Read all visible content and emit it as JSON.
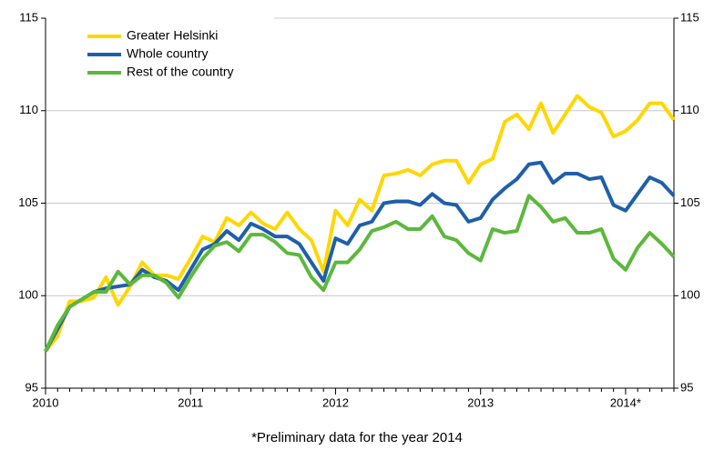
{
  "chart_data": {
    "type": "line",
    "note": "*Preliminary data for the year 2014",
    "categories": [
      "2010",
      null,
      null,
      null,
      null,
      null,
      null,
      null,
      null,
      null,
      null,
      null,
      "2011",
      null,
      null,
      null,
      null,
      null,
      null,
      null,
      null,
      null,
      null,
      null,
      "2012",
      null,
      null,
      null,
      null,
      null,
      null,
      null,
      null,
      null,
      null,
      null,
      "2013",
      null,
      null,
      null,
      null,
      null,
      null,
      null,
      null,
      null,
      null,
      null,
      "2014*",
      null,
      null,
      null,
      null
    ],
    "series": [
      {
        "name": "Greater Helsinki",
        "color": "#ffd700",
        "values": [
          97.0,
          97.8,
          99.7,
          99.7,
          99.9,
          101.0,
          99.5,
          100.5,
          101.8,
          101.1,
          101.1,
          100.9,
          102.0,
          103.2,
          102.9,
          104.2,
          103.8,
          104.5,
          103.9,
          103.6,
          104.5,
          103.6,
          103.0,
          101.3,
          104.6,
          103.8,
          105.2,
          104.6,
          106.5,
          106.6,
          106.8,
          106.5,
          107.1,
          107.3,
          107.3,
          106.1,
          107.1,
          107.4,
          109.4,
          109.8,
          109.0,
          110.4,
          108.8,
          109.8,
          110.8,
          110.2,
          109.9,
          108.6,
          108.9,
          109.5,
          110.4,
          110.4,
          109.5
        ]
      },
      {
        "name": "Whole country",
        "color": "#1f5faa",
        "values": [
          97.0,
          98.2,
          99.4,
          99.8,
          100.2,
          100.4,
          100.5,
          100.6,
          101.4,
          101.0,
          100.8,
          100.3,
          101.4,
          102.5,
          102.8,
          103.5,
          103.0,
          103.9,
          103.6,
          103.2,
          103.2,
          102.8,
          101.8,
          100.8,
          103.1,
          102.8,
          103.8,
          104.0,
          105.0,
          105.1,
          105.1,
          104.9,
          105.5,
          105.0,
          104.9,
          104.0,
          104.2,
          105.2,
          105.8,
          106.3,
          107.1,
          107.2,
          106.1,
          106.6,
          106.6,
          106.3,
          106.4,
          104.9,
          104.6,
          105.5,
          106.4,
          106.1,
          105.4
        ]
      },
      {
        "name": "Rest of the country",
        "color": "#5cb83c",
        "values": [
          97.0,
          98.4,
          99.4,
          99.8,
          100.2,
          100.2,
          101.3,
          100.6,
          101.1,
          101.1,
          100.7,
          99.9,
          101.0,
          102.0,
          102.7,
          102.9,
          102.4,
          103.3,
          103.3,
          102.9,
          102.3,
          102.2,
          101.0,
          100.3,
          101.8,
          101.8,
          102.5,
          103.5,
          103.7,
          104.0,
          103.6,
          103.6,
          104.3,
          103.2,
          103.0,
          102.3,
          101.9,
          103.6,
          103.4,
          103.5,
          105.4,
          104.8,
          104.0,
          104.2,
          103.4,
          103.4,
          103.6,
          102.0,
          101.4,
          102.6,
          103.4,
          102.8,
          102.1
        ]
      }
    ],
    "ylim": [
      95,
      115
    ],
    "yticks": [
      95,
      100,
      105,
      110,
      115
    ],
    "y2lim": [
      95,
      115
    ],
    "y2ticks": [
      95,
      100,
      105,
      110,
      115
    ],
    "grid": true,
    "legend": "top-left"
  }
}
